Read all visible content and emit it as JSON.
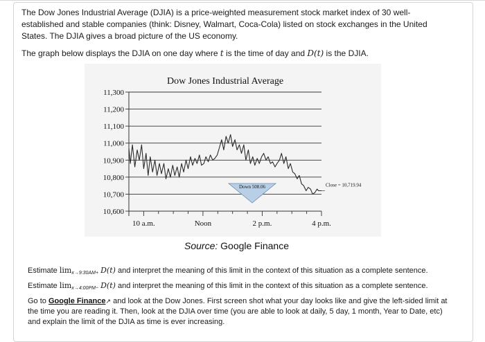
{
  "intro": "The Dow Jones Industrial Average (DJIA) is a price-weighted measurement stock market index of 30 well-established and stable companies (think: Disney, Walmart, Coca-Cola) listed on stock exchanges in the United States. The DJIA gives a broad picture of the US economy.",
  "graph_caption_prefix": "The graph below displays the DJIA on one day where ",
  "graph_caption_var_t": "t",
  "graph_caption_mid": " is the time of day and ",
  "graph_caption_var_D": "D(t)",
  "graph_caption_suffix": " is the DJIA.",
  "source_label": "Source:",
  "source_name": "Google Finance",
  "questions": {
    "q1_prefix": "Estimate ",
    "q1_lim": "lim",
    "q1_sub": "x→9:30AM+",
    "q1_func": "D(t)",
    "q1_suffix": " and interpret the meaning of this limit in the context of this situation as a complete sentence.",
    "q2_prefix": "Estimate ",
    "q2_lim": "lim",
    "q2_sub": "x→4:00PM−",
    "q2_func": "D(t)",
    "q2_suffix": " and interpret the meaning of this limit in the context of this situation as a complete sentence.",
    "q3_prefix": "Go to ",
    "q3_link": "Google Finance",
    "q3_ext_icon": "external-link-icon",
    "q3_suffix": " and look at the Dow Jones. First screen shot what your day looks like and give the left-sided limit at the time you are reading it. Then, look at the DJIA over time (you are able to look at daily, 5 day, 1 month, Year to Date, etc) and explain the limit of the DJIA as time is ever increasing."
  },
  "chart_data": {
    "type": "line",
    "title": "Dow Jones Industrial Average",
    "xlabel": "",
    "ylabel": "",
    "x_ticks": [
      "10 a.m.",
      "Noon",
      "2 p.m.",
      "4 p.m."
    ],
    "y_ticks": [
      "11,300",
      "11,200",
      "11,100",
      "11,000",
      "10,900",
      "10,800",
      "10,700",
      "10,600"
    ],
    "ylim": [
      10600,
      11300
    ],
    "xlim": [
      9.5,
      16.0
    ],
    "grid": true,
    "annotations": [
      {
        "text": "Down 508.06"
      },
      {
        "text": "Close = 10,719.94"
      }
    ],
    "series": [
      {
        "x": [
          9.5,
          9.55,
          9.62,
          9.7,
          9.78,
          9.85,
          9.93,
          10.0,
          10.08,
          10.15,
          10.22,
          10.3,
          10.38,
          10.45,
          10.53,
          10.6,
          10.68,
          10.75,
          10.83,
          10.9,
          10.98,
          11.05,
          11.13,
          11.2,
          11.28,
          11.35,
          11.43,
          11.5,
          11.58,
          11.65,
          11.73,
          11.8,
          11.88,
          11.95,
          12.03,
          12.1,
          12.18,
          12.25,
          12.33,
          12.4,
          12.48,
          12.55,
          12.63,
          12.7,
          12.78,
          12.85,
          12.93,
          13.0,
          13.08,
          13.15,
          13.23,
          13.3,
          13.38,
          13.45,
          13.53,
          13.6,
          13.68,
          13.75,
          13.83,
          13.9,
          13.98,
          14.05,
          14.13,
          14.2,
          14.28,
          14.35,
          14.43,
          14.5,
          14.58,
          14.65,
          14.73,
          14.8,
          14.88,
          14.95,
          15.03,
          15.1,
          15.18,
          15.25,
          15.33,
          15.4,
          15.48,
          15.55,
          15.63,
          15.7,
          15.78,
          15.85,
          15.9,
          15.95,
          16.0
        ],
        "y": [
          10970,
          10880,
          10990,
          10860,
          10960,
          10900,
          10990,
          10850,
          10940,
          10810,
          10920,
          10830,
          10900,
          10810,
          10880,
          10820,
          10880,
          10790,
          10850,
          10800,
          10870,
          10810,
          10860,
          10800,
          10880,
          10830,
          10900,
          10850,
          10920,
          10870,
          10910,
          10880,
          10930,
          10870,
          10880,
          10920,
          10890,
          10930,
          10900,
          10910,
          10930,
          10970,
          11020,
          10960,
          11040,
          11000,
          11050,
          10980,
          11020,
          10960,
          10990,
          10940,
          10990,
          10900,
          10960,
          10880,
          10920,
          10870,
          10910,
          10880,
          10920,
          10940,
          10900,
          10920,
          10880,
          10890,
          10860,
          10880,
          10900,
          10940,
          10880,
          10920,
          10850,
          10880,
          10830,
          10820,
          10790,
          10810,
          10760,
          10750,
          10720,
          10740,
          10730,
          10700,
          10710,
          10730,
          10720,
          10720,
          10720
        ]
      }
    ]
  }
}
